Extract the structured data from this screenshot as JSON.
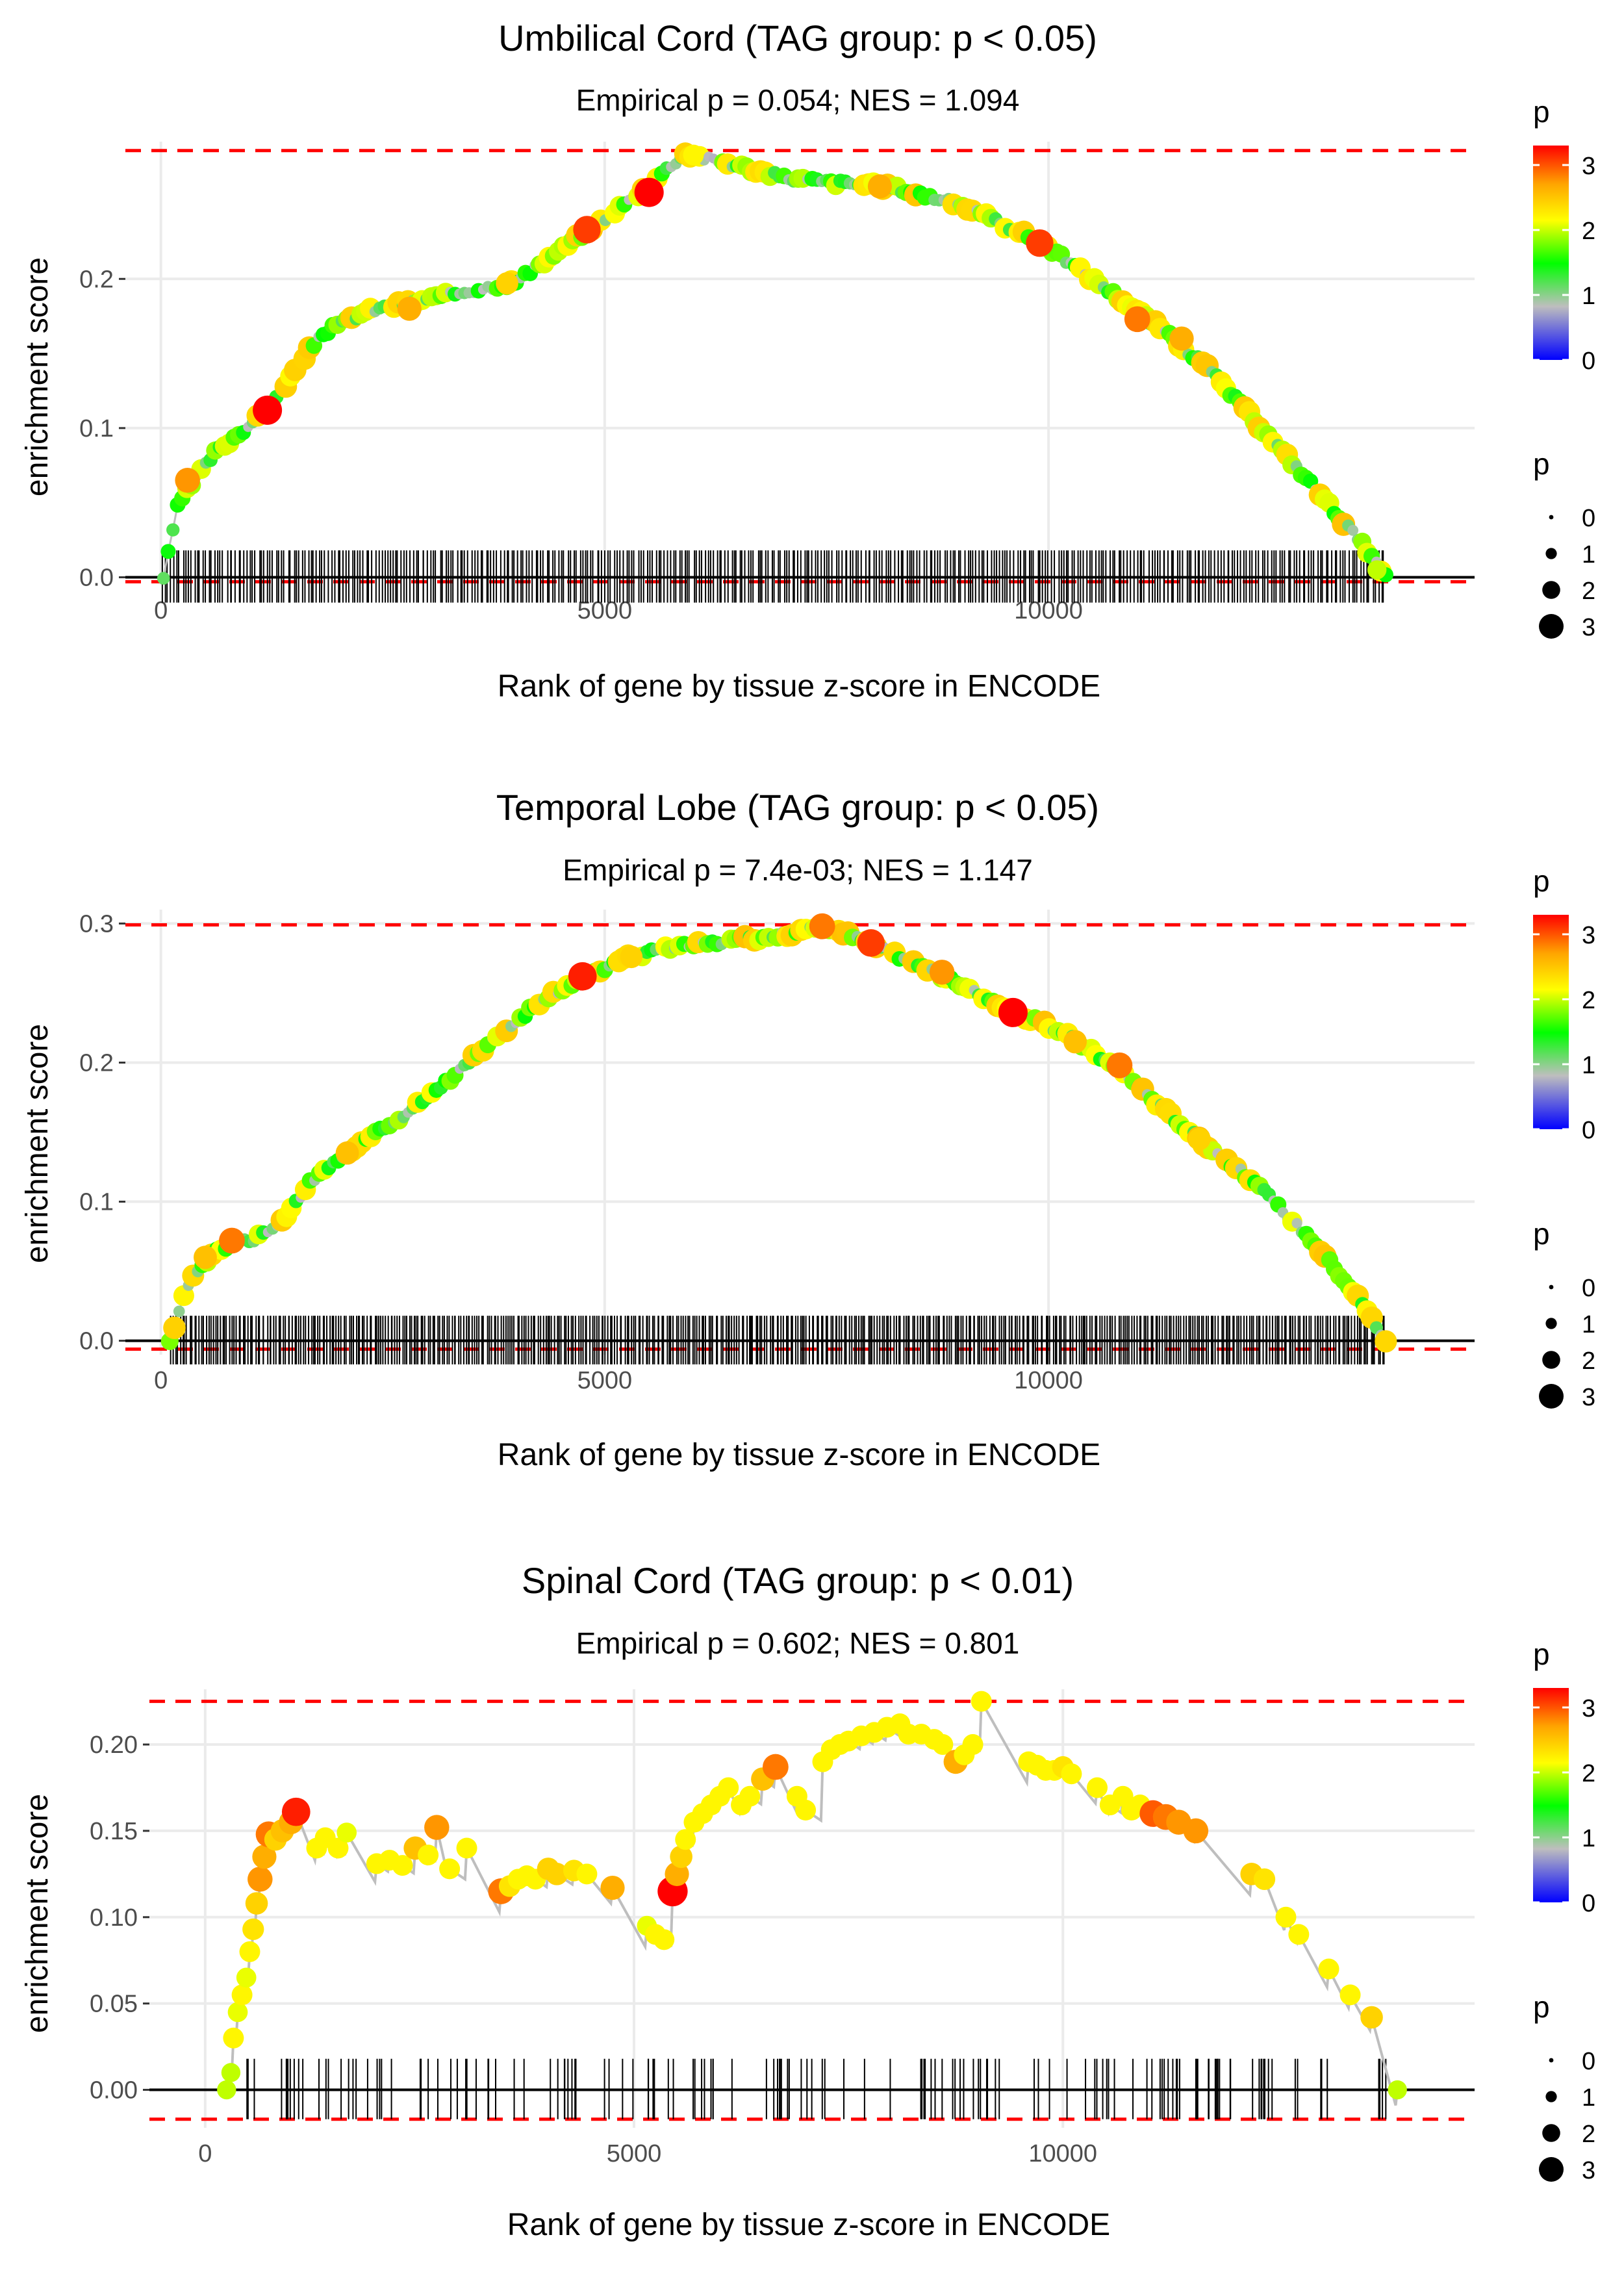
{
  "colors": {
    "grid": "#ebebeb",
    "dashed": "#ff0000",
    "zero_line": "#000000",
    "line": "#bebebe",
    "axis_text": "#4d4d4d",
    "scale": [
      "#0000ff",
      "#bebebe",
      "#00ff00",
      "#ffff00",
      "#ffa500",
      "#ff0000"
    ]
  },
  "chart_data": [
    {
      "type": "line",
      "title": "Umbilical Cord (TAG group: p < 0.05)",
      "subtitle": "Empirical p = 0.054; NES = 1.094",
      "xlabel": "Rank of gene by tissue z-score in ENCODE",
      "ylabel": "enrichment score",
      "xlim": [
        -400,
        14800
      ],
      "ylim": [
        -0.005,
        0.292
      ],
      "xticks": [
        0,
        5000,
        10000
      ],
      "xtick_labels": [
        "0",
        "5000",
        "10000"
      ],
      "yticks": [
        0.0,
        0.1,
        0.2
      ],
      "ytick_labels": [
        "0.0",
        "0.1",
        "0.2"
      ],
      "max_es": 0.286,
      "min_es": -0.003,
      "rug": {
        "from": 0,
        "to": 13800,
        "count": 420,
        "ymin": -0.017,
        "ymax": 0.018
      },
      "curve": [
        [
          30,
          0.0
        ],
        [
          200,
          0.05
        ],
        [
          600,
          0.083
        ],
        [
          1200,
          0.112
        ],
        [
          1800,
          0.163
        ],
        [
          2300,
          0.178
        ],
        [
          2700,
          0.183
        ],
        [
          3300,
          0.19
        ],
        [
          4000,
          0.198
        ],
        [
          4700,
          0.228
        ],
        [
          5400,
          0.258
        ],
        [
          5900,
          0.284
        ],
        [
          6500,
          0.276
        ],
        [
          7000,
          0.268
        ],
        [
          7500,
          0.265
        ],
        [
          8200,
          0.262
        ],
        [
          9000,
          0.25
        ],
        [
          9900,
          0.225
        ],
        [
          10500,
          0.2
        ],
        [
          11200,
          0.17
        ],
        [
          11800,
          0.14
        ],
        [
          12400,
          0.1
        ],
        [
          13000,
          0.06
        ],
        [
          13500,
          0.025
        ],
        [
          13800,
          0.0
        ]
      ],
      "highlights": [
        [
          300,
          0.065,
          2.5
        ],
        [
          1200,
          0.112,
          3.0
        ],
        [
          2800,
          0.18,
          2.4
        ],
        [
          3900,
          0.197,
          2.2
        ],
        [
          4800,
          0.233,
          2.8
        ],
        [
          5500,
          0.258,
          3.0
        ],
        [
          6000,
          0.283,
          2.0
        ],
        [
          8100,
          0.262,
          2.4
        ],
        [
          9900,
          0.224,
          2.8
        ],
        [
          11000,
          0.173,
          2.6
        ],
        [
          11500,
          0.16,
          2.4
        ],
        [
          13700,
          0.005,
          1.8
        ]
      ],
      "legend": {
        "color_title": "p",
        "color_ticks": [
          "0",
          "1",
          "2",
          "3"
        ],
        "size_title": "p",
        "size_labels": [
          "0",
          "1",
          "2",
          "3"
        ]
      }
    },
    {
      "type": "line",
      "title": "Temporal Lobe (TAG group: p < 0.05)",
      "subtitle": "Empirical p = 7.4e-03; NES = 1.147",
      "xlabel": "Rank of gene by tissue z-score in ENCODE",
      "ylabel": "enrichment score",
      "xlim": [
        -400,
        14800
      ],
      "ylim": [
        -0.01,
        0.31
      ],
      "xticks": [
        0,
        5000,
        10000
      ],
      "xtick_labels": [
        "0",
        "5000",
        "10000"
      ],
      "yticks": [
        0.0,
        0.1,
        0.2,
        0.3
      ],
      "ytick_labels": [
        "0.0",
        "0.1",
        "0.2",
        "0.3"
      ],
      "max_es": 0.299,
      "min_es": -0.006,
      "rug": {
        "from": 100,
        "to": 13800,
        "count": 520,
        "ymin": -0.017,
        "ymax": 0.018
      },
      "curve": [
        [
          100,
          0.0
        ],
        [
          300,
          0.04
        ],
        [
          600,
          0.065
        ],
        [
          1000,
          0.072
        ],
        [
          1300,
          0.08
        ],
        [
          1700,
          0.115
        ],
        [
          2200,
          0.14
        ],
        [
          2700,
          0.16
        ],
        [
          3300,
          0.19
        ],
        [
          3800,
          0.22
        ],
        [
          4300,
          0.245
        ],
        [
          4800,
          0.262
        ],
        [
          5200,
          0.275
        ],
        [
          5800,
          0.283
        ],
        [
          6500,
          0.288
        ],
        [
          7000,
          0.292
        ],
        [
          7500,
          0.298
        ],
        [
          8200,
          0.28
        ],
        [
          8800,
          0.262
        ],
        [
          9500,
          0.24
        ],
        [
          10200,
          0.22
        ],
        [
          10800,
          0.195
        ],
        [
          11500,
          0.155
        ],
        [
          12300,
          0.115
        ],
        [
          13000,
          0.07
        ],
        [
          13500,
          0.03
        ],
        [
          13800,
          0.0
        ]
      ],
      "highlights": [
        [
          500,
          0.06,
          2.3
        ],
        [
          800,
          0.072,
          2.6
        ],
        [
          2100,
          0.135,
          2.3
        ],
        [
          4750,
          0.262,
          2.9
        ],
        [
          5300,
          0.276,
          2.2
        ],
        [
          7450,
          0.298,
          2.6
        ],
        [
          8000,
          0.286,
          2.8
        ],
        [
          8800,
          0.265,
          2.5
        ],
        [
          9600,
          0.236,
          3.0
        ],
        [
          10300,
          0.215,
          2.3
        ],
        [
          10800,
          0.198,
          2.6
        ],
        [
          11700,
          0.145,
          2.2
        ]
      ],
      "legend": {
        "color_title": "p",
        "color_ticks": [
          "0",
          "1",
          "2",
          "3"
        ],
        "size_title": "p",
        "size_labels": [
          "0",
          "1",
          "2",
          "3"
        ]
      }
    },
    {
      "type": "line",
      "title": "Spinal Cord (TAG group: p < 0.01)",
      "subtitle": "Empirical p = 0.602; NES = 0.801",
      "xlabel": "Rank of gene by tissue z-score in ENCODE",
      "ylabel": "enrichment score",
      "xlim": [
        -650,
        14800
      ],
      "ylim": [
        -0.022,
        0.232
      ],
      "xticks": [
        0,
        5000,
        10000
      ],
      "xtick_labels": [
        "0",
        "5000",
        "10000"
      ],
      "yticks": [
        0.0,
        0.05,
        0.1,
        0.15,
        0.2
      ],
      "ytick_labels": [
        "0.00",
        "0.05",
        "0.10",
        "0.15",
        "0.20"
      ],
      "max_es": 0.225,
      "min_es": -0.017,
      "rug": {
        "from": 250,
        "to": 13800,
        "count": 150,
        "ymin": -0.017,
        "ymax": 0.018
      },
      "points": [
        [
          250,
          0.0,
          1.8
        ],
        [
          300,
          0.01,
          1.8
        ],
        [
          330,
          0.03,
          2.0
        ],
        [
          380,
          0.045,
          1.9
        ],
        [
          430,
          0.055,
          2.0
        ],
        [
          480,
          0.065,
          1.9
        ],
        [
          520,
          0.08,
          2.0
        ],
        [
          560,
          0.093,
          2.1
        ],
        [
          600,
          0.108,
          2.2
        ],
        [
          640,
          0.122,
          2.5
        ],
        [
          690,
          0.135,
          2.4
        ],
        [
          740,
          0.148,
          2.6
        ],
        [
          820,
          0.145,
          2.2
        ],
        [
          900,
          0.15,
          2.3
        ],
        [
          1000,
          0.155,
          2.4
        ],
        [
          1060,
          0.161,
          2.9
        ],
        [
          1300,
          0.14,
          2.0
        ],
        [
          1400,
          0.146,
          2.0
        ],
        [
          1550,
          0.14,
          2.0
        ],
        [
          1650,
          0.149,
          1.9
        ],
        [
          2000,
          0.131,
          2.0
        ],
        [
          2150,
          0.133,
          2.0
        ],
        [
          2300,
          0.13,
          2.0
        ],
        [
          2450,
          0.14,
          2.3
        ],
        [
          2600,
          0.136,
          2.0
        ],
        [
          2700,
          0.152,
          2.5
        ],
        [
          2850,
          0.128,
          2.0
        ],
        [
          3050,
          0.14,
          2.0
        ],
        [
          3450,
          0.115,
          2.6
        ],
        [
          3550,
          0.118,
          2.1
        ],
        [
          3650,
          0.122,
          2.0
        ],
        [
          3750,
          0.124,
          2.0
        ],
        [
          3850,
          0.122,
          2.0
        ],
        [
          4000,
          0.128,
          2.2
        ],
        [
          4100,
          0.125,
          2.2
        ],
        [
          4300,
          0.127,
          2.1
        ],
        [
          4450,
          0.125,
          2.0
        ],
        [
          4750,
          0.117,
          2.4
        ],
        [
          5150,
          0.095,
          1.9
        ],
        [
          5250,
          0.09,
          2.0
        ],
        [
          5350,
          0.087,
          2.0
        ],
        [
          5450,
          0.115,
          3.1
        ],
        [
          5500,
          0.125,
          2.4
        ],
        [
          5550,
          0.135,
          2.2
        ],
        [
          5600,
          0.145,
          2.0
        ],
        [
          5700,
          0.155,
          2.0
        ],
        [
          5800,
          0.16,
          2.0
        ],
        [
          5900,
          0.165,
          2.0
        ],
        [
          6000,
          0.17,
          2.0
        ],
        [
          6100,
          0.175,
          2.0
        ],
        [
          6250,
          0.165,
          2.0
        ],
        [
          6350,
          0.17,
          2.0
        ],
        [
          6500,
          0.18,
          2.3
        ],
        [
          6650,
          0.187,
          2.6
        ],
        [
          6900,
          0.17,
          2.0
        ],
        [
          7000,
          0.162,
          2.0
        ],
        [
          7200,
          0.19,
          2.0
        ],
        [
          7300,
          0.197,
          2.0
        ],
        [
          7400,
          0.2,
          2.0
        ],
        [
          7500,
          0.202,
          2.0
        ],
        [
          7650,
          0.205,
          2.0
        ],
        [
          7800,
          0.207,
          2.0
        ],
        [
          7950,
          0.21,
          2.0
        ],
        [
          8100,
          0.212,
          2.0
        ],
        [
          8200,
          0.206,
          2.0
        ],
        [
          8350,
          0.206,
          2.0
        ],
        [
          8500,
          0.203,
          2.0
        ],
        [
          8600,
          0.2,
          2.0
        ],
        [
          8750,
          0.19,
          2.4
        ],
        [
          8850,
          0.194,
          2.0
        ],
        [
          8950,
          0.2,
          2.0
        ],
        [
          9050,
          0.225,
          2.0
        ],
        [
          9600,
          0.19,
          2.0
        ],
        [
          9700,
          0.188,
          2.0
        ],
        [
          9800,
          0.185,
          2.0
        ],
        [
          9900,
          0.185,
          2.0
        ],
        [
          10000,
          0.187,
          2.1
        ],
        [
          10100,
          0.183,
          2.0
        ],
        [
          10400,
          0.175,
          2.0
        ],
        [
          10550,
          0.165,
          2.0
        ],
        [
          10700,
          0.17,
          2.0
        ],
        [
          10800,
          0.162,
          2.0
        ],
        [
          10900,
          0.165,
          2.0
        ],
        [
          11050,
          0.16,
          2.7
        ],
        [
          11200,
          0.158,
          2.6
        ],
        [
          11350,
          0.155,
          2.5
        ],
        [
          11550,
          0.15,
          2.5
        ],
        [
          12200,
          0.125,
          2.2
        ],
        [
          12350,
          0.122,
          2.1
        ],
        [
          12600,
          0.1,
          2.0
        ],
        [
          12750,
          0.09,
          2.0
        ],
        [
          13100,
          0.07,
          2.0
        ],
        [
          13350,
          0.055,
          2.0
        ],
        [
          13600,
          0.042,
          2.2
        ],
        [
          13900,
          0.0,
          1.8
        ]
      ],
      "legend": {
        "color_title": "p",
        "color_ticks": [
          "0",
          "1",
          "2",
          "3"
        ],
        "size_title": "p",
        "size_labels": [
          "0",
          "1",
          "2",
          "3"
        ]
      }
    }
  ]
}
